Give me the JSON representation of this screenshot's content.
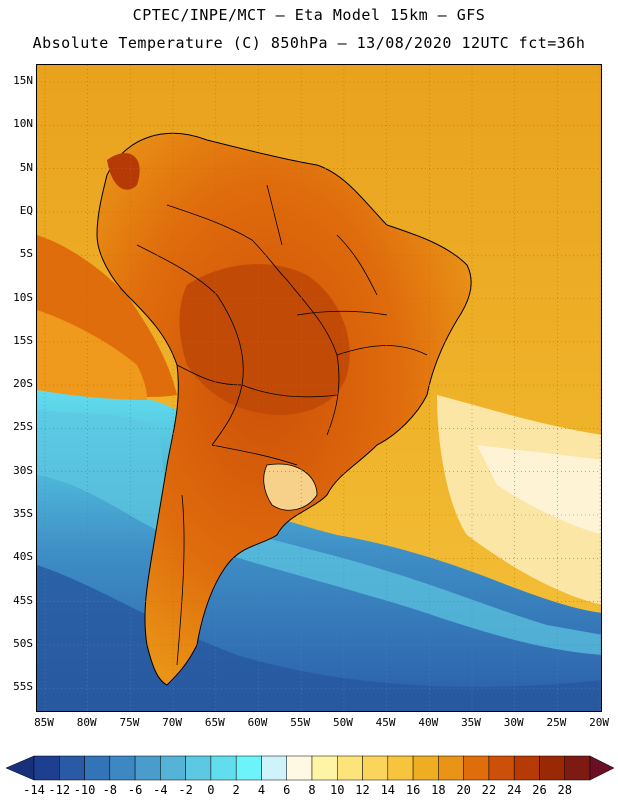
{
  "header": {
    "line1": "CPTEC/INPE/MCT –  Eta Model 15km – GFS",
    "line2": "Absolute Temperature (C) 850hPa – 13/08/2020 12UTC fct=36h"
  },
  "map": {
    "lat_labels": [
      "15N",
      "10N",
      "5N",
      "EQ",
      "5S",
      "10S",
      "15S",
      "20S",
      "25S",
      "30S",
      "35S",
      "40S",
      "45S",
      "50S",
      "55S"
    ],
    "lon_labels": [
      "85W",
      "80W",
      "75W",
      "70W",
      "65W",
      "60W",
      "55W",
      "50W",
      "45W",
      "40W",
      "35W",
      "30W",
      "25W",
      "20W"
    ],
    "colors": {
      "ocean_cold": "#2b64a8",
      "land_hot": "#d6620f",
      "warm": "#eda31f"
    }
  },
  "colorbar": {
    "labels": [
      "-14",
      "-12",
      "-10",
      "-8",
      "-6",
      "-4",
      "-2",
      "0",
      "2",
      "4",
      "6",
      "8",
      "10",
      "12",
      "14",
      "16",
      "18",
      "20",
      "22",
      "24",
      "26",
      "28"
    ],
    "colors": [
      "#1e3f8f",
      "#2a59a6",
      "#3274b7",
      "#3d87c2",
      "#4a9ccd",
      "#55b3d8",
      "#5cc8e2",
      "#62dded",
      "#6df4fb",
      "#cef3fb",
      "#fff9e3",
      "#fff3a6",
      "#fde47a",
      "#fbd45c",
      "#f7c43e",
      "#efad22",
      "#e99417",
      "#df6d0c",
      "#cc4f0a",
      "#b53a06",
      "#9b2804",
      "#7d1a12"
    ],
    "end_left": "#18307a",
    "end_right": "#6a0f24"
  }
}
